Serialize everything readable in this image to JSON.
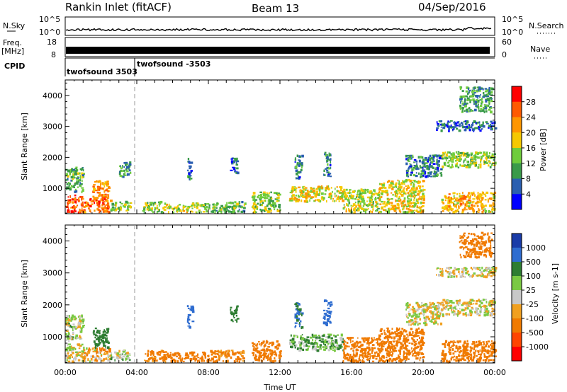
{
  "header": {
    "station": "Rankin Inlet (fitACF)",
    "beam": "Beam 13",
    "date": "04/Sep/2016"
  },
  "strip": {
    "nsky_label": "N.Sky",
    "nsky_ticks": [
      "10^5",
      "10^0"
    ],
    "nsearch_label": "N.Search",
    "freq_label": "Freq.",
    "freq_unit": "[MHz]",
    "freq_ticks": [
      "18",
      "8"
    ],
    "nave_ticks": [
      "60",
      "0"
    ],
    "nave_label": "Nave",
    "cpid_label": "CPID",
    "cpid_1": "twofsound 3503",
    "cpid_2": "twofsound -3503"
  },
  "axes": {
    "ylabel": "Slant Range [km]",
    "xlabel": "Time UT",
    "y_ticks": [
      "1000",
      "2000",
      "3000",
      "4000"
    ],
    "x_ticks": [
      "00:00",
      "04:00",
      "08:00",
      "12:00",
      "16:00",
      "20:00",
      "00:00"
    ]
  },
  "colors": {
    "power": [
      "#ff0000",
      "#ff5a00",
      "#ff9600",
      "#f5c800",
      "#6fcc3c",
      "#3a9a4a",
      "#2a5fb0",
      "#0000ff"
    ],
    "velocity": [
      "#1a3ca8",
      "#2f6dd0",
      "#2e7d32",
      "#7ac943",
      "#c8c8c8",
      "#f0a020",
      "#f07a00",
      "#ff4500",
      "#ff0000"
    ]
  },
  "chart_data": [
    {
      "type": "heatmap",
      "title": "",
      "xlabel": "Time UT",
      "ylabel": "Slant Range [km]",
      "xlim": [
        0,
        24
      ],
      "ylim": [
        180,
        4500
      ],
      "colorbar": {
        "label": "Power [dB]",
        "ticks": [
          "28",
          "24",
          "20",
          "16",
          "12",
          "8",
          "4"
        ]
      },
      "echo_regions": [
        {
          "t": [
            0.0,
            1.0
          ],
          "range": [
            250,
            800
          ],
          "power": 26
        },
        {
          "t": [
            0.0,
            1.0
          ],
          "range": [
            900,
            1700
          ],
          "power": 12
        },
        {
          "t": [
            1.0,
            2.5
          ],
          "range": [
            250,
            700
          ],
          "power": 24
        },
        {
          "t": [
            1.5,
            2.4
          ],
          "range": [
            700,
            1300
          ],
          "power": 22
        },
        {
          "t": [
            2.5,
            3.6
          ],
          "range": [
            300,
            600
          ],
          "power": 14
        },
        {
          "t": [
            3.0,
            3.6
          ],
          "range": [
            1400,
            1900
          ],
          "power": 10
        },
        {
          "t": [
            4.3,
            5.6
          ],
          "range": [
            250,
            600
          ],
          "power": 14
        },
        {
          "t": [
            5.6,
            8.0
          ],
          "range": [
            250,
            550
          ],
          "power": 16
        },
        {
          "t": [
            6.8,
            7.1
          ],
          "range": [
            1300,
            2000
          ],
          "power": 8
        },
        {
          "t": [
            8.0,
            10.0
          ],
          "range": [
            250,
            600
          ],
          "power": 12
        },
        {
          "t": [
            9.2,
            9.6
          ],
          "range": [
            1500,
            2000
          ],
          "power": 6
        },
        {
          "t": [
            10.4,
            12.0
          ],
          "range": [
            250,
            900
          ],
          "power": 14
        },
        {
          "t": [
            12.8,
            13.2
          ],
          "range": [
            1300,
            2100
          ],
          "power": 8
        },
        {
          "t": [
            12.5,
            15.5
          ],
          "range": [
            600,
            1100
          ],
          "power": 18
        },
        {
          "t": [
            14.4,
            14.8
          ],
          "range": [
            1400,
            2200
          ],
          "power": 8
        },
        {
          "t": [
            15.5,
            17.5
          ],
          "range": [
            250,
            1000
          ],
          "power": 16
        },
        {
          "t": [
            17.5,
            20.0
          ],
          "range": [
            250,
            1300
          ],
          "power": 18
        },
        {
          "t": [
            19.0,
            21.0
          ],
          "range": [
            1400,
            2100
          ],
          "power": 8
        },
        {
          "t": [
            21.0,
            24.0
          ],
          "range": [
            250,
            900
          ],
          "power": 20
        },
        {
          "t": [
            21.0,
            24.0
          ],
          "range": [
            1700,
            2200
          ],
          "power": 14
        },
        {
          "t": [
            20.7,
            24.0
          ],
          "range": [
            2900,
            3200
          ],
          "power": 6
        },
        {
          "t": [
            22.0,
            23.8
          ],
          "range": [
            3500,
            4300
          ],
          "power": 10
        }
      ]
    },
    {
      "type": "heatmap",
      "title": "",
      "xlabel": "Time UT",
      "ylabel": "Slant Range [km]",
      "xlim": [
        0,
        24
      ],
      "ylim": [
        180,
        4500
      ],
      "colorbar": {
        "label": "Velocity [m s-1]",
        "ticks": [
          "1000",
          "500",
          "100",
          "25",
          "-25",
          "-100",
          "-500",
          "-1000"
        ]
      },
      "echo_regions": [
        {
          "t": [
            0.0,
            1.0
          ],
          "range": [
            250,
            800
          ],
          "velocity": 0
        },
        {
          "t": [
            0.0,
            1.0
          ],
          "range": [
            900,
            1700
          ],
          "velocity": 10
        },
        {
          "t": [
            1.0,
            2.5
          ],
          "range": [
            250,
            700
          ],
          "velocity": -60
        },
        {
          "t": [
            1.5,
            2.4
          ],
          "range": [
            700,
            1300
          ],
          "velocity": 300
        },
        {
          "t": [
            2.5,
            3.6
          ],
          "range": [
            300,
            600
          ],
          "velocity": 50
        },
        {
          "t": [
            4.3,
            5.6
          ],
          "range": [
            250,
            600
          ],
          "velocity": -150
        },
        {
          "t": [
            5.6,
            8.0
          ],
          "range": [
            250,
            550
          ],
          "velocity": -200
        },
        {
          "t": [
            6.8,
            7.1
          ],
          "range": [
            1300,
            2000
          ],
          "velocity": 600
        },
        {
          "t": [
            8.0,
            10.0
          ],
          "range": [
            250,
            600
          ],
          "velocity": -150
        },
        {
          "t": [
            9.2,
            9.6
          ],
          "range": [
            1500,
            2000
          ],
          "velocity": 400
        },
        {
          "t": [
            10.4,
            12.0
          ],
          "range": [
            250,
            900
          ],
          "velocity": -250
        },
        {
          "t": [
            12.8,
            13.2
          ],
          "range": [
            1300,
            2100
          ],
          "velocity": 500
        },
        {
          "t": [
            12.5,
            15.5
          ],
          "range": [
            600,
            1100
          ],
          "velocity": 80
        },
        {
          "t": [
            14.4,
            14.8
          ],
          "range": [
            1400,
            2200
          ],
          "velocity": 600
        },
        {
          "t": [
            15.5,
            17.5
          ],
          "range": [
            250,
            1000
          ],
          "velocity": -300
        },
        {
          "t": [
            17.5,
            20.0
          ],
          "range": [
            250,
            1300
          ],
          "velocity": -200
        },
        {
          "t": [
            19.0,
            21.0
          ],
          "range": [
            1400,
            2100
          ],
          "velocity": 0
        },
        {
          "t": [
            21.0,
            24.0
          ],
          "range": [
            250,
            900
          ],
          "velocity": -300
        },
        {
          "t": [
            21.0,
            24.0
          ],
          "range": [
            1700,
            2200
          ],
          "velocity": 0
        },
        {
          "t": [
            20.7,
            24.0
          ],
          "range": [
            2900,
            3200
          ],
          "velocity": 0
        },
        {
          "t": [
            22.0,
            23.8
          ],
          "range": [
            3500,
            4300
          ],
          "velocity": -400
        }
      ]
    }
  ]
}
